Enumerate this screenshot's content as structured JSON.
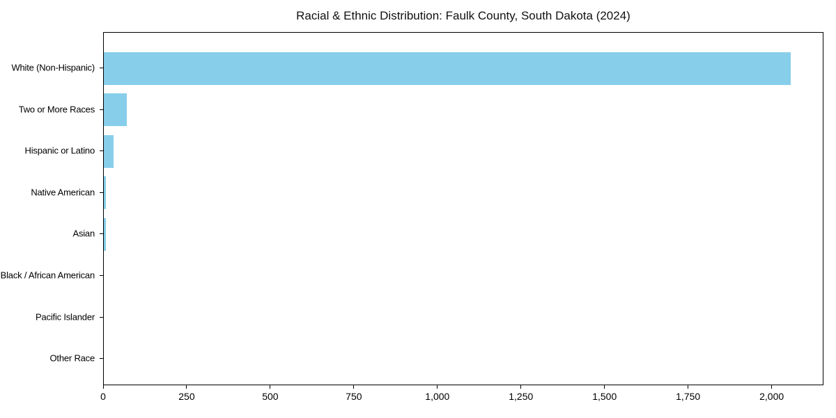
{
  "page": {
    "background_color": "#ffffff"
  },
  "chart_data": {
    "type": "bar",
    "orientation": "horizontal",
    "title": "Racial & Ethnic Distribution: Faulk County, South Dakota (2024)",
    "categories": [
      "White (Non-Hispanic)",
      "Two or More Races",
      "Hispanic or Latino",
      "Native American",
      "Asian",
      "Black / African American",
      "Pacific Islander",
      "Other Race"
    ],
    "values": [
      2056,
      69,
      29,
      6,
      6,
      0,
      0,
      0
    ],
    "xlabel": "",
    "ylabel": "",
    "xlim": [
      0,
      2155
    ],
    "x_ticks": [
      0,
      250,
      500,
      750,
      1000,
      1250,
      1500,
      1750,
      2000
    ],
    "x_tick_labels": [
      "0",
      "250",
      "500",
      "750",
      "1,000",
      "1,250",
      "1,500",
      "1,750",
      "2,000"
    ],
    "bar_color": "#87CEEB",
    "axis_color": "#000000",
    "grid": false,
    "legend_position": "none"
  }
}
